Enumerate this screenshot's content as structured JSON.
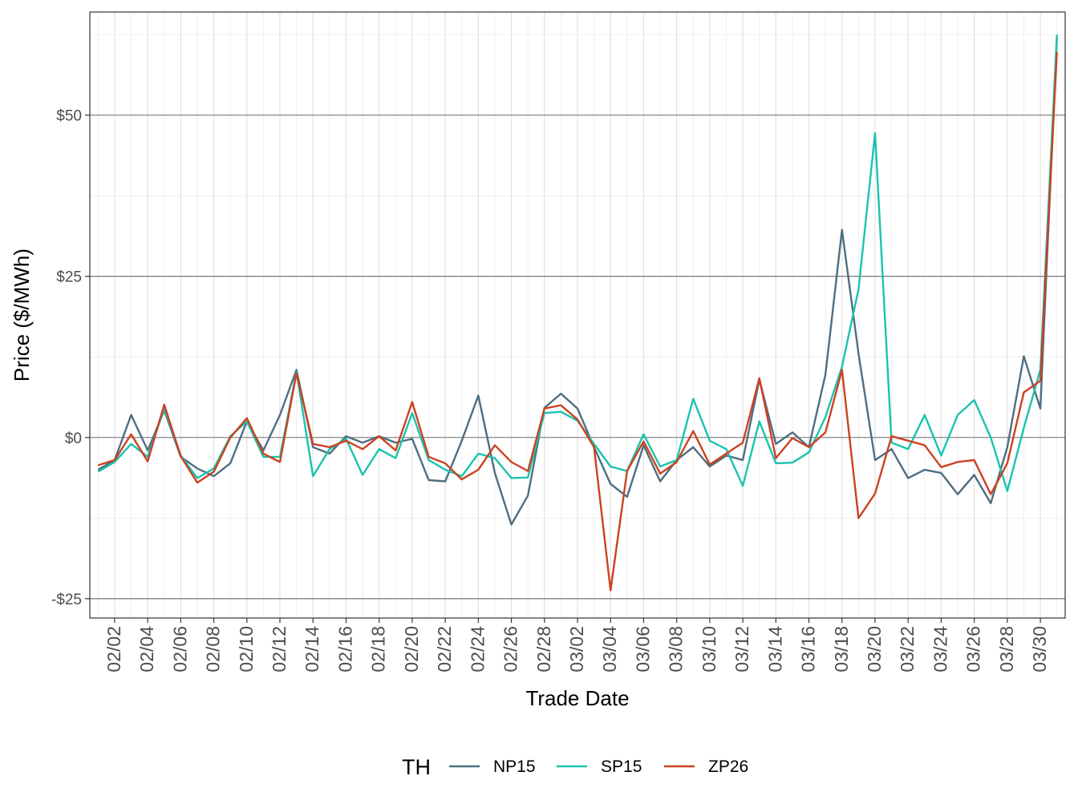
{
  "chart_data": {
    "type": "line",
    "xlabel": "Trade Date",
    "ylabel": "Price ($/MWh)",
    "ylim": [
      -28,
      66
    ],
    "y_ticks": [
      {
        "value": -25,
        "label": "-$25"
      },
      {
        "value": 0,
        "label": "$0"
      },
      {
        "value": 25,
        "label": "$25"
      },
      {
        "value": 50,
        "label": "$50"
      }
    ],
    "x_tick_labels": [
      "02/02",
      "02/04",
      "02/06",
      "02/08",
      "02/10",
      "02/12",
      "02/14",
      "02/16",
      "02/18",
      "02/20",
      "02/22",
      "02/24",
      "02/26",
      "02/28",
      "03/02",
      "03/04",
      "03/06",
      "03/08",
      "03/10",
      "03/12",
      "03/14",
      "03/16",
      "03/18",
      "03/20",
      "03/22",
      "03/24",
      "03/26",
      "03/28",
      "03/30"
    ],
    "x": [
      "02/01",
      "02/02",
      "02/03",
      "02/04",
      "02/05",
      "02/06",
      "02/07",
      "02/08",
      "02/09",
      "02/10",
      "02/11",
      "02/12",
      "02/13",
      "02/14",
      "02/15",
      "02/16",
      "02/17",
      "02/18",
      "02/19",
      "02/20",
      "02/21",
      "02/22",
      "02/23",
      "02/24",
      "02/25",
      "02/26",
      "02/27",
      "02/28",
      "03/01",
      "03/02",
      "03/03",
      "03/04",
      "03/05",
      "03/06",
      "03/07",
      "03/08",
      "03/09",
      "03/10",
      "03/11",
      "03/12",
      "03/13",
      "03/14",
      "03/15",
      "03/16",
      "03/17",
      "03/18",
      "03/19",
      "03/20",
      "03/21",
      "03/22",
      "03/23",
      "03/24",
      "03/25",
      "03/26",
      "03/27",
      "03/28",
      "03/29",
      "03/30",
      "03/31"
    ],
    "grid": true,
    "legend": {
      "title": "TH",
      "position": "bottom"
    },
    "series": [
      {
        "name": "NP15",
        "color": "#4e6e81",
        "values": [
          -5.0,
          -3.5,
          3.5,
          -2.0,
          4.2,
          -3.0,
          -4.8,
          -6.0,
          -4.0,
          2.5,
          -2.0,
          3.5,
          10.5,
          -1.5,
          -2.5,
          0.2,
          -0.8,
          0.2,
          -0.8,
          -0.2,
          -6.6,
          -6.8,
          -0.5,
          6.5,
          -5.5,
          -13.5,
          -9.0,
          4.6,
          6.8,
          4.5,
          -1.5,
          -7.2,
          -9.2,
          -1.2,
          -6.8,
          -3.5,
          -1.5,
          -4.5,
          -2.8,
          -3.5,
          9.0,
          -1.0,
          0.8,
          -1.5,
          9.8,
          32.2,
          13.0,
          -3.5,
          -1.8,
          -6.3,
          -5.0,
          -5.5,
          -8.8,
          -5.8,
          -10.2,
          -1.5,
          12.6,
          4.5,
          62.0
        ]
      },
      {
        "name": "SP15",
        "color": "#1bc3ad",
        "values": [
          -5.3,
          -3.8,
          -1.0,
          -3.0,
          4.5,
          -2.8,
          -6.3,
          -4.8,
          0.2,
          2.5,
          -3.0,
          -3.0,
          10.2,
          -6.0,
          -1.8,
          -0.2,
          -5.8,
          -1.8,
          -3.2,
          3.8,
          -3.5,
          -5.0,
          -6.0,
          -2.5,
          -3.2,
          -6.3,
          -6.2,
          3.8,
          4.0,
          2.6,
          -1.0,
          -4.5,
          -5.2,
          0.5,
          -4.5,
          -3.5,
          6.0,
          -0.5,
          -1.8,
          -7.5,
          2.5,
          -4.0,
          -3.9,
          -2.3,
          3.2,
          11.0,
          23.0,
          47.2,
          -0.8,
          -1.8,
          3.5,
          -2.8,
          3.5,
          5.8,
          0.0,
          -8.3,
          1.5,
          10.5,
          62.5
        ]
      },
      {
        "name": "ZP26",
        "color": "#cc4120",
        "values": [
          -4.3,
          -3.5,
          0.5,
          -3.7,
          5.1,
          -2.9,
          -7.0,
          -5.3,
          0.0,
          3.0,
          -2.5,
          -3.8,
          10.0,
          -1.0,
          -1.5,
          -0.5,
          -1.8,
          0.2,
          -2.0,
          5.5,
          -3.0,
          -4.0,
          -6.5,
          -5.0,
          -1.2,
          -3.8,
          -5.2,
          4.5,
          5.0,
          2.8,
          -1.5,
          -23.7,
          -5.2,
          -0.6,
          -5.6,
          -3.8,
          1.0,
          -4.2,
          -2.5,
          -0.8,
          9.2,
          -3.2,
          -0.1,
          -1.5,
          0.8,
          10.5,
          -12.5,
          -8.7,
          0.2,
          -0.5,
          -1.2,
          -4.6,
          -3.8,
          -3.5,
          -8.8,
          -4.0,
          7.0,
          8.8,
          59.8
        ]
      }
    ]
  }
}
